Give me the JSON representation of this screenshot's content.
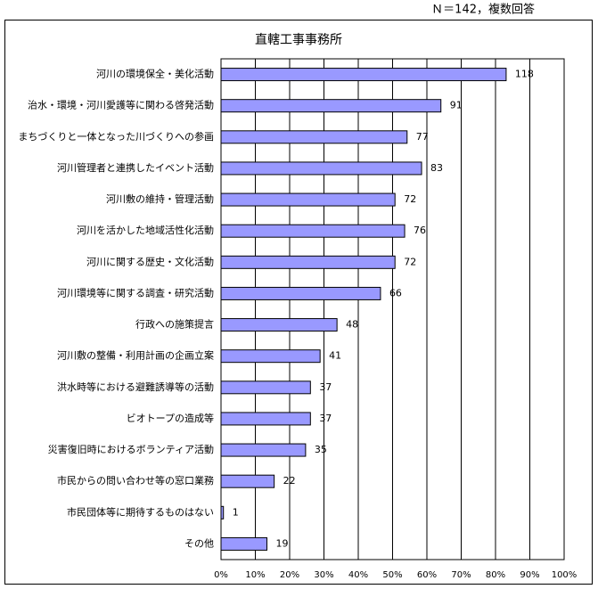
{
  "chart_data": {
    "type": "bar",
    "orientation": "horizontal",
    "title": "直轄工事事務所",
    "subtitle": "Ｎ＝142，複数回答",
    "categories": [
      "河川の環境保全・美化活動",
      "治水・環境・河川愛護等に関わる啓発活動",
      "まちづくりと一体となった川づくりへの参画",
      "河川管理者と連携したイベント活動",
      "河川敷の維持・管理活動",
      "河川を活かした地域活性化活動",
      "河川に関する歴史・文化活動",
      "河川環境等に関する調査・研究活動",
      "行政への施策提言",
      "河川敷の整備・利用計画の企画立案",
      "洪水時等における避難誘導等の活動",
      "ビオトープの造成等",
      "災害復旧時におけるボランティア活動",
      "市民からの問い合わせ等の窓口業務",
      "市民団体等に期待するものはない",
      "その他"
    ],
    "values": [
      118,
      91,
      77,
      83,
      72,
      76,
      72,
      66,
      48,
      41,
      37,
      37,
      35,
      22,
      1,
      19
    ],
    "color": "#9999ff",
    "xlim": [
      0,
      142
    ],
    "xticks": [
      {
        "value": 0,
        "label": "0%"
      },
      {
        "value": 14.2,
        "label": "10%"
      },
      {
        "value": 28.4,
        "label": "20%"
      },
      {
        "value": 42.6,
        "label": "30%"
      },
      {
        "value": 56.8,
        "label": "40%"
      },
      {
        "value": 71,
        "label": "50%"
      },
      {
        "value": 85.2,
        "label": "60%"
      },
      {
        "value": 99.4,
        "label": "70%"
      },
      {
        "value": 113.6,
        "label": "80%"
      },
      {
        "value": 127.8,
        "label": "90%"
      },
      {
        "value": 142,
        "label": "100%"
      }
    ],
    "grid": true
  }
}
